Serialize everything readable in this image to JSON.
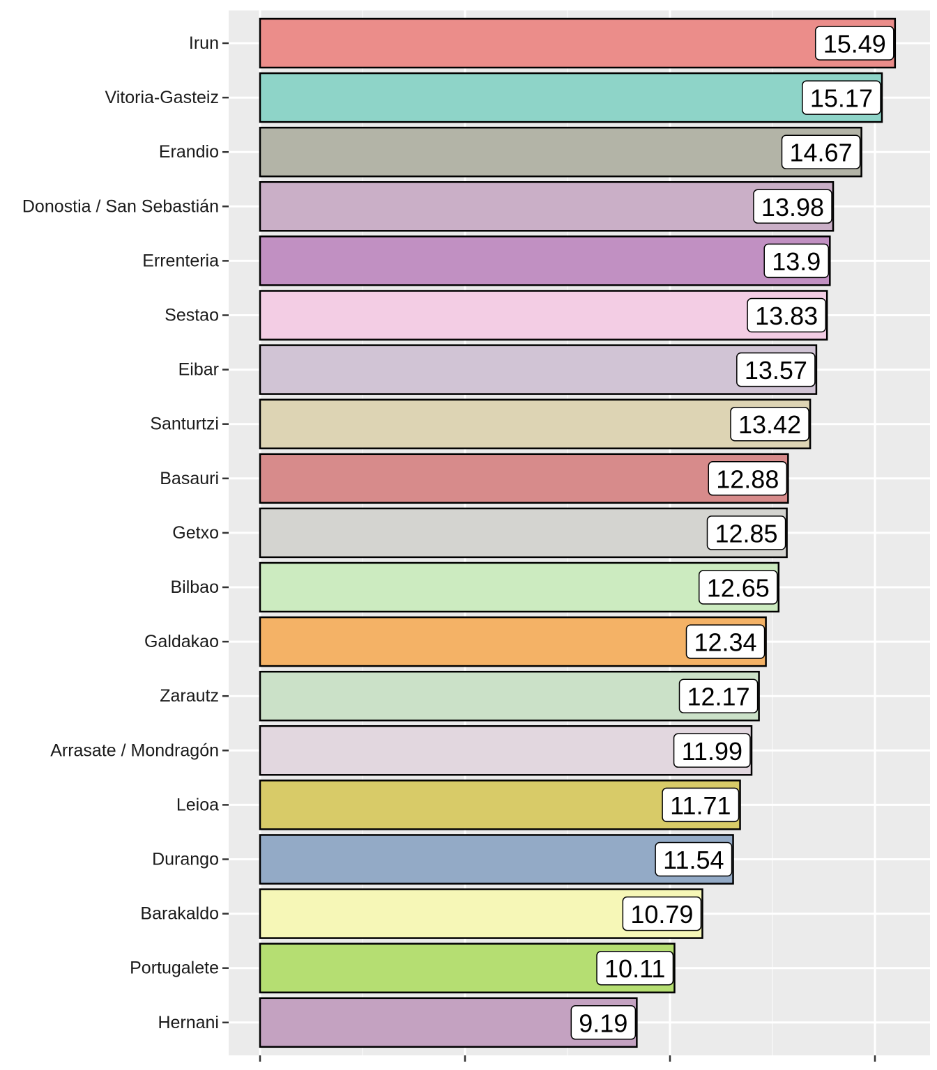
{
  "chart_data": {
    "type": "bar",
    "orientation": "horizontal",
    "title": "",
    "xlabel": "",
    "ylabel": "",
    "xlim": [
      0,
      15.5
    ],
    "grid": true,
    "legend": "none",
    "categories": [
      "Irun",
      "Vitoria-Gasteiz",
      "Erandio",
      "Donostia / San Sebastián",
      "Errenteria",
      "Sestao",
      "Eibar",
      "Santurtzi",
      "Basauri",
      "Getxo",
      "Bilbao",
      "Galdakao",
      "Zarautz",
      "Arrasate / Mondragón",
      "Leioa",
      "Durango",
      "Barakaldo",
      "Portugalete",
      "Hernani"
    ],
    "values": [
      15.49,
      15.17,
      14.67,
      13.98,
      13.9,
      13.83,
      13.57,
      13.42,
      12.88,
      12.85,
      12.65,
      12.34,
      12.17,
      11.99,
      11.71,
      11.54,
      10.79,
      10.11,
      9.19
    ],
    "labels": [
      "15.49",
      "15.17",
      "14.67",
      "13.98",
      "13.9",
      "13.83",
      "13.57",
      "13.42",
      "12.88",
      "12.85",
      "12.65",
      "12.34",
      "12.17",
      "11.99",
      "11.71",
      "11.54",
      "10.79",
      "10.11",
      "9.19"
    ],
    "colors": [
      "#EB8D8A",
      "#8ED4C8",
      "#B3B4A7",
      "#CAAFC7",
      "#C190C2",
      "#F3CDE4",
      "#D1C4D5",
      "#DDD4B4",
      "#D78B8B",
      "#D4D4D0",
      "#CCEBC0",
      "#F4B266",
      "#CBE1C8",
      "#E2D7DF",
      "#D8CB68",
      "#93AAC6",
      "#F6F7B7",
      "#B5DE72",
      "#C4A2C1"
    ]
  }
}
